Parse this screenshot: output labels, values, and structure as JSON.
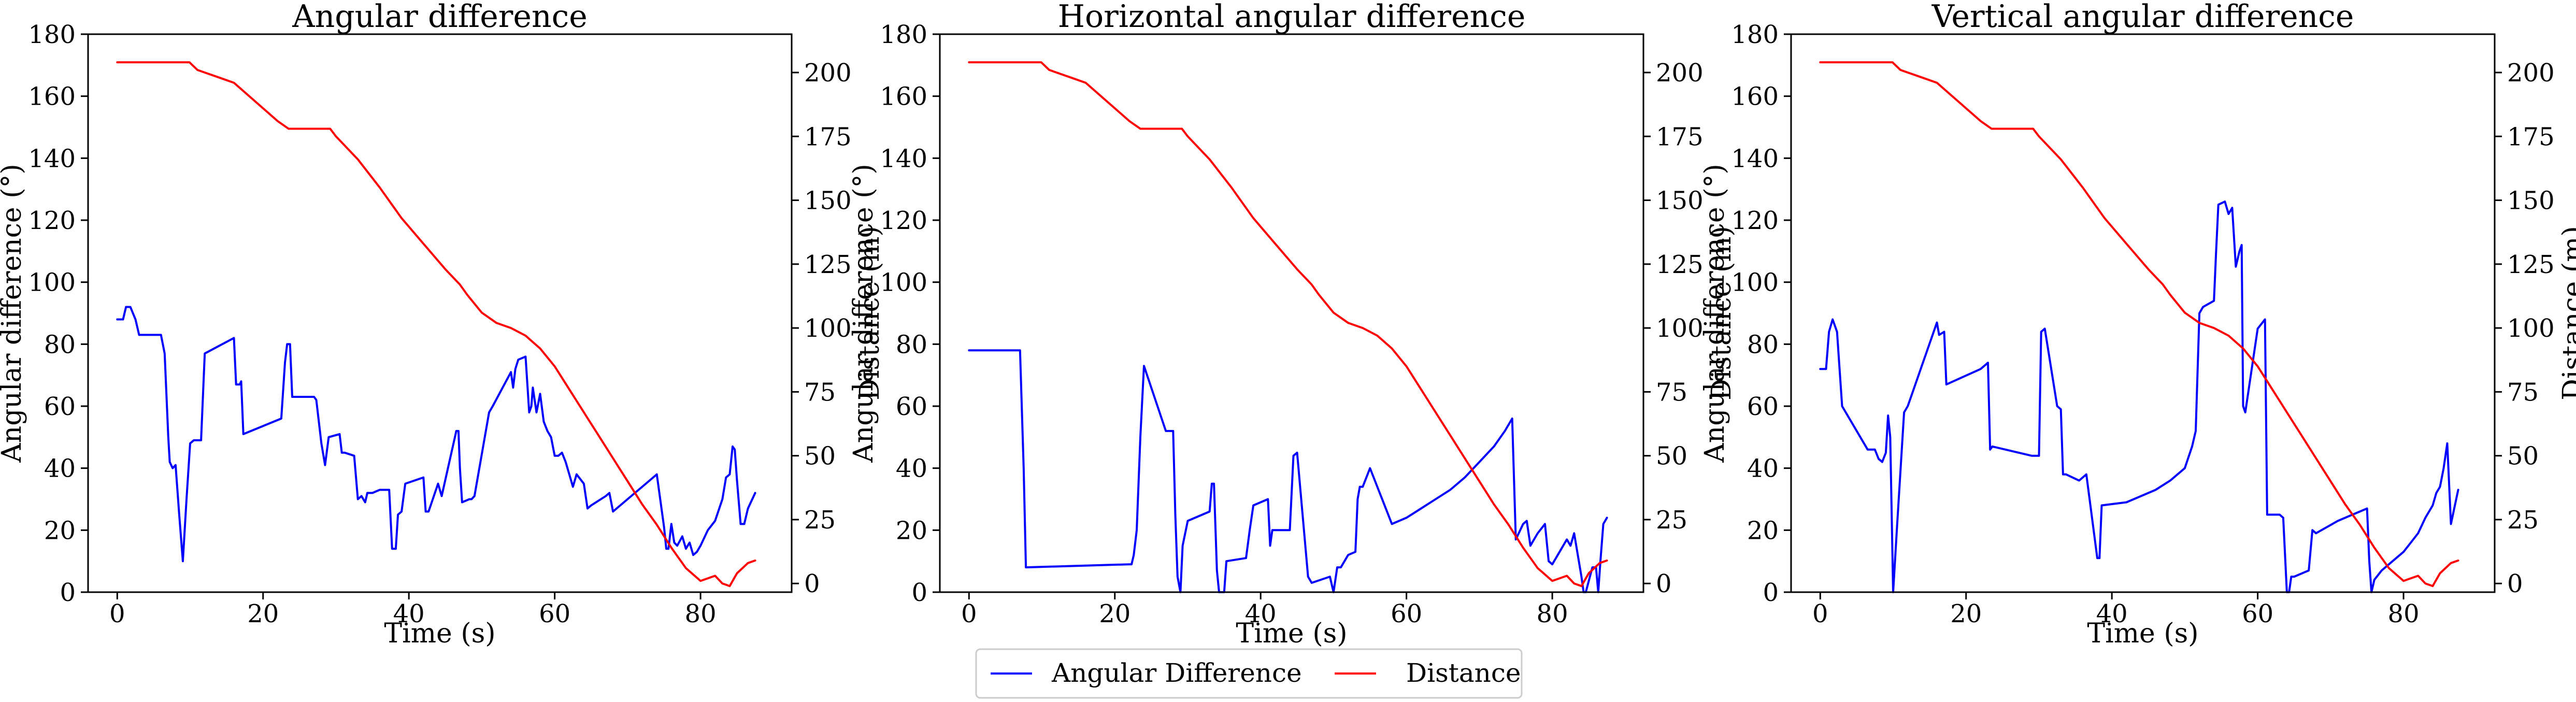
{
  "colors": {
    "angular": "#0000ff",
    "distance": "#ff0000",
    "frame": "#000000"
  },
  "legend": {
    "placement": "bottom-center",
    "items": [
      {
        "label": "Angular Difference",
        "color": "#0000ff"
      },
      {
        "label": "Distance",
        "color": "#ff0000"
      }
    ]
  },
  "chart_data": [
    {
      "type": "line",
      "title": "Angular difference",
      "xlabel": "Time (s)",
      "ylabel": "Angular difference (°)",
      "y2label": "Distance (m)",
      "xlim": [
        -4,
        92.5
      ],
      "ylim": [
        0,
        180
      ],
      "y2lim": [
        -3.4,
        215
      ],
      "xticks": [
        "0",
        "20",
        "40",
        "60",
        "80"
      ],
      "yticks": [
        "0",
        "20",
        "40",
        "60",
        "80",
        "100",
        "120",
        "140",
        "160",
        "180"
      ],
      "y2ticks": [
        "0",
        "25",
        "50",
        "75",
        "100",
        "125",
        "150",
        "175",
        "200"
      ],
      "grid": false,
      "series": [
        {
          "name": "Angular Difference",
          "axis": "left",
          "color": "#0000ff",
          "x": [
            0,
            0.8,
            1.2,
            1.8,
            2.5,
            3.0,
            6.0,
            6.5,
            7.0,
            7.2,
            7.6,
            8.0,
            8.5,
            9.0,
            9.5,
            10.0,
            10.5,
            11.5,
            12.0,
            16.0,
            16.3,
            16.8,
            17.0,
            17.3,
            22.5,
            23.0,
            23.3,
            23.7,
            24.0,
            27.0,
            27.3,
            28.0,
            28.5,
            29.0,
            30.5,
            30.8,
            31.2,
            32.5,
            33.0,
            33.5,
            34.0,
            34.3,
            35.0,
            36.0,
            37.3,
            37.7,
            38.2,
            38.5,
            39.0,
            39.5,
            42.0,
            42.3,
            42.7,
            44.0,
            44.5,
            46.5,
            46.8,
            47.0,
            47.3,
            48.3,
            48.6,
            49.0,
            51.0,
            51.5,
            54.0,
            54.3,
            54.6,
            55.0,
            56.0,
            56.5,
            56.8,
            57.0,
            57.5,
            58.0,
            58.5,
            59.0,
            59.5,
            60.0,
            60.5,
            61.0,
            61.5,
            62.0,
            62.5,
            63.0,
            64.0,
            64.5,
            65.0,
            67.0,
            67.5,
            68.0,
            71.0,
            72.0,
            73.0,
            74.0,
            75.0,
            75.3,
            75.6,
            76.0,
            76.4,
            76.8,
            77.5,
            78.0,
            78.5,
            79.0,
            79.5,
            80.0,
            81.0,
            82.0,
            83.0,
            83.5,
            84.0,
            84.4,
            84.7,
            85.0,
            85.5,
            86.0,
            86.5,
            87.5
          ],
          "y": [
            88,
            88,
            92,
            92,
            88,
            83,
            83,
            77,
            50,
            42,
            40,
            41,
            25,
            10,
            30,
            48,
            49,
            49,
            77,
            82,
            67,
            67,
            68,
            51,
            56,
            74,
            80,
            80,
            63,
            63,
            62,
            48,
            41,
            50,
            51,
            45,
            45,
            44,
            30,
            31,
            29,
            32,
            32,
            33,
            33,
            14,
            14,
            25,
            26,
            35,
            37,
            26,
            26,
            35,
            31,
            52,
            52,
            40,
            29,
            30,
            30,
            31,
            58,
            60,
            71,
            66,
            72,
            75,
            76,
            58,
            60,
            66,
            58,
            64,
            55,
            52,
            50,
            44,
            44,
            45,
            42,
            38,
            34,
            38,
            35,
            27,
            28,
            31,
            32,
            26,
            32,
            34,
            36,
            38,
            21,
            14,
            14,
            22,
            16,
            15,
            18,
            14,
            16,
            12,
            13,
            15,
            20,
            23,
            30,
            37,
            38,
            47,
            46,
            36,
            22,
            22,
            27,
            32
          ]
        },
        {
          "name": "Distance",
          "axis": "right",
          "color": "#ff0000",
          "x": [
            0,
            9.9,
            11,
            12,
            14,
            16,
            18,
            20,
            22,
            23.5,
            24.5,
            29.2,
            30,
            33,
            36,
            39,
            42,
            45,
            47,
            48,
            50,
            52,
            54,
            56,
            58,
            60,
            62,
            64,
            66,
            68,
            70,
            72,
            74,
            76,
            78,
            80,
            82,
            83,
            84,
            85,
            86.5,
            87.5
          ],
          "y": [
            204,
            204,
            201,
            200,
            198,
            196,
            191,
            186,
            181,
            178,
            178,
            178,
            175,
            166,
            155,
            143,
            133,
            123,
            117,
            113,
            106,
            102,
            100,
            97,
            92,
            85,
            76,
            67,
            58,
            49,
            40,
            31,
            23,
            14,
            6,
            1,
            3,
            0,
            -1,
            4,
            8,
            9
          ]
        }
      ]
    },
    {
      "type": "line",
      "title": "Horizontal angular difference",
      "xlabel": "Time (s)",
      "ylabel": "Angular difference (°)",
      "y2label": "Distance (m)",
      "xlim": [
        -4,
        92.5
      ],
      "ylim": [
        0,
        180
      ],
      "y2lim": [
        -3.4,
        215
      ],
      "xticks": [
        "0",
        "20",
        "40",
        "60",
        "80"
      ],
      "yticks": [
        "0",
        "20",
        "40",
        "60",
        "80",
        "100",
        "120",
        "140",
        "160",
        "180"
      ],
      "y2ticks": [
        "0",
        "25",
        "50",
        "75",
        "100",
        "125",
        "150",
        "175",
        "200"
      ],
      "grid": false,
      "series": [
        {
          "name": "Angular Difference",
          "axis": "left",
          "color": "#0000ff",
          "x": [
            0,
            7.0,
            7.5,
            7.8,
            22.0,
            22.3,
            22.6,
            23.0,
            23.5,
            24.0,
            27.0,
            28.0,
            28.3,
            28.6,
            29.0,
            29.3,
            30.0,
            33.0,
            33.3,
            33.6,
            34.0,
            34.3,
            35.0,
            35.3,
            38.0,
            38.5,
            39.0,
            41.0,
            41.3,
            41.6,
            44.0,
            44.5,
            45.0,
            46.5,
            47.0,
            49.5,
            50.0,
            50.5,
            51.0,
            52.0,
            53.0,
            53.3,
            53.6,
            54.0,
            55.0,
            58.0,
            60.0,
            62.0,
            64.0,
            66.0,
            68.0,
            70.0,
            72.0,
            73.5,
            74.5,
            75.0,
            76.0,
            76.5,
            77.0,
            78.0,
            79.0,
            79.5,
            80.0,
            81.0,
            82.0,
            82.5,
            83.0,
            84.0,
            84.3,
            84.6,
            85.5,
            86.0,
            86.3,
            86.6,
            87.0,
            87.5
          ],
          "y": [
            78,
            78,
            40,
            8,
            9,
            9,
            12,
            20,
            50,
            73,
            52,
            52,
            25,
            5,
            0,
            15,
            23,
            26,
            35,
            35,
            7,
            0,
            0,
            10,
            11,
            20,
            28,
            30,
            15,
            20,
            20,
            44,
            45,
            5,
            3,
            5,
            0,
            8,
            8,
            12,
            13,
            30,
            34,
            34,
            40,
            22,
            24,
            27,
            30,
            33,
            37,
            42,
            47,
            52,
            56,
            17,
            22,
            23,
            15,
            19,
            22,
            10,
            9,
            13,
            17,
            15,
            19,
            5,
            0,
            0,
            8,
            8,
            0,
            10,
            22,
            24
          ]
        },
        {
          "name": "Distance",
          "axis": "right",
          "color": "#ff0000",
          "x": [
            0,
            9.9,
            11,
            12,
            14,
            16,
            18,
            20,
            22,
            23.5,
            24.5,
            29.2,
            30,
            33,
            36,
            39,
            42,
            45,
            47,
            48,
            50,
            52,
            54,
            56,
            58,
            60,
            62,
            64,
            66,
            68,
            70,
            72,
            74,
            76,
            78,
            80,
            82,
            83,
            84,
            85,
            86.5,
            87.5
          ],
          "y": [
            204,
            204,
            201,
            200,
            198,
            196,
            191,
            186,
            181,
            178,
            178,
            178,
            175,
            166,
            155,
            143,
            133,
            123,
            117,
            113,
            106,
            102,
            100,
            97,
            92,
            85,
            76,
            67,
            58,
            49,
            40,
            31,
            23,
            14,
            6,
            1,
            3,
            0,
            -1,
            4,
            8,
            9
          ]
        }
      ]
    },
    {
      "type": "line",
      "title": "Vertical angular difference",
      "xlabel": "Time (s)",
      "ylabel": "Angular difference (°)",
      "y2label": "Distance (m)",
      "xlim": [
        -4,
        92.5
      ],
      "ylim": [
        0,
        180
      ],
      "y2lim": [
        -3.4,
        215
      ],
      "xticks": [
        "0",
        "20",
        "40",
        "60",
        "80"
      ],
      "yticks": [
        "0",
        "20",
        "40",
        "60",
        "80",
        "100",
        "120",
        "140",
        "160",
        "180"
      ],
      "y2ticks": [
        "0",
        "25",
        "50",
        "75",
        "100",
        "125",
        "150",
        "175",
        "200"
      ],
      "grid": false,
      "series": [
        {
          "name": "Angular Difference",
          "axis": "left",
          "color": "#0000ff",
          "x": [
            0,
            0.8,
            1.2,
            1.7,
            2.3,
            3.0,
            6.5,
            7.0,
            7.5,
            8.0,
            8.5,
            9.0,
            9.3,
            9.6,
            10.0,
            10.5,
            11.5,
            12.0,
            16.0,
            16.3,
            17.0,
            17.3,
            22.0,
            22.5,
            23.0,
            23.3,
            23.6,
            29.0,
            29.5,
            30.0,
            30.3,
            30.8,
            32.5,
            33.0,
            33.3,
            33.7,
            35.5,
            36.0,
            36.5,
            38.0,
            38.3,
            38.6,
            42.0,
            44.0,
            46.0,
            48.0,
            50.0,
            51.0,
            51.5,
            52.0,
            52.5,
            54.0,
            54.3,
            54.6,
            55.5,
            56.0,
            56.5,
            57.0,
            57.5,
            57.8,
            58.0,
            58.3,
            60.0,
            61.0,
            61.3,
            63.0,
            63.5,
            64.0,
            64.3,
            64.6,
            65.0,
            67.0,
            67.5,
            68.0,
            71.0,
            73.0,
            75.0,
            75.3,
            75.6,
            76.0,
            77.0,
            78.0,
            79.0,
            80.0,
            81.0,
            82.0,
            83.0,
            84.0,
            84.5,
            85.0,
            85.5,
            86.0,
            86.5,
            87.5
          ],
          "y": [
            72,
            72,
            84,
            88,
            84,
            60,
            46,
            46,
            46,
            43,
            42,
            45,
            57,
            50,
            0,
            20,
            58,
            60,
            87,
            83,
            84,
            67,
            72,
            73,
            74,
            46,
            47,
            44,
            44,
            44,
            84,
            85,
            60,
            59,
            38,
            38,
            36,
            37,
            38,
            11,
            11,
            28,
            29,
            31,
            33,
            36,
            40,
            47,
            52,
            90,
            92,
            94,
            110,
            125,
            126,
            122,
            124,
            105,
            110,
            112,
            60,
            58,
            85,
            88,
            25,
            25,
            24,
            0,
            0,
            5,
            5,
            7,
            20,
            19,
            23,
            25,
            27,
            10,
            0,
            4,
            7,
            9,
            11,
            13,
            16,
            19,
            24,
            28,
            32,
            34,
            40,
            48,
            22,
            33
          ]
        },
        {
          "name": "Distance",
          "axis": "right",
          "color": "#ff0000",
          "x": [
            0,
            9.9,
            11,
            12,
            14,
            16,
            18,
            20,
            22,
            23.5,
            24.5,
            29.2,
            30,
            33,
            36,
            39,
            42,
            45,
            47,
            48,
            50,
            52,
            54,
            56,
            58,
            60,
            62,
            64,
            66,
            68,
            70,
            72,
            74,
            76,
            78,
            80,
            82,
            83,
            84,
            85,
            86.5,
            87.5
          ],
          "y": [
            204,
            204,
            201,
            200,
            198,
            196,
            191,
            186,
            181,
            178,
            178,
            178,
            175,
            166,
            155,
            143,
            133,
            123,
            117,
            113,
            106,
            102,
            100,
            97,
            92,
            85,
            76,
            67,
            58,
            49,
            40,
            31,
            23,
            14,
            6,
            1,
            3,
            0,
            -1,
            4,
            8,
            9
          ]
        }
      ]
    }
  ]
}
